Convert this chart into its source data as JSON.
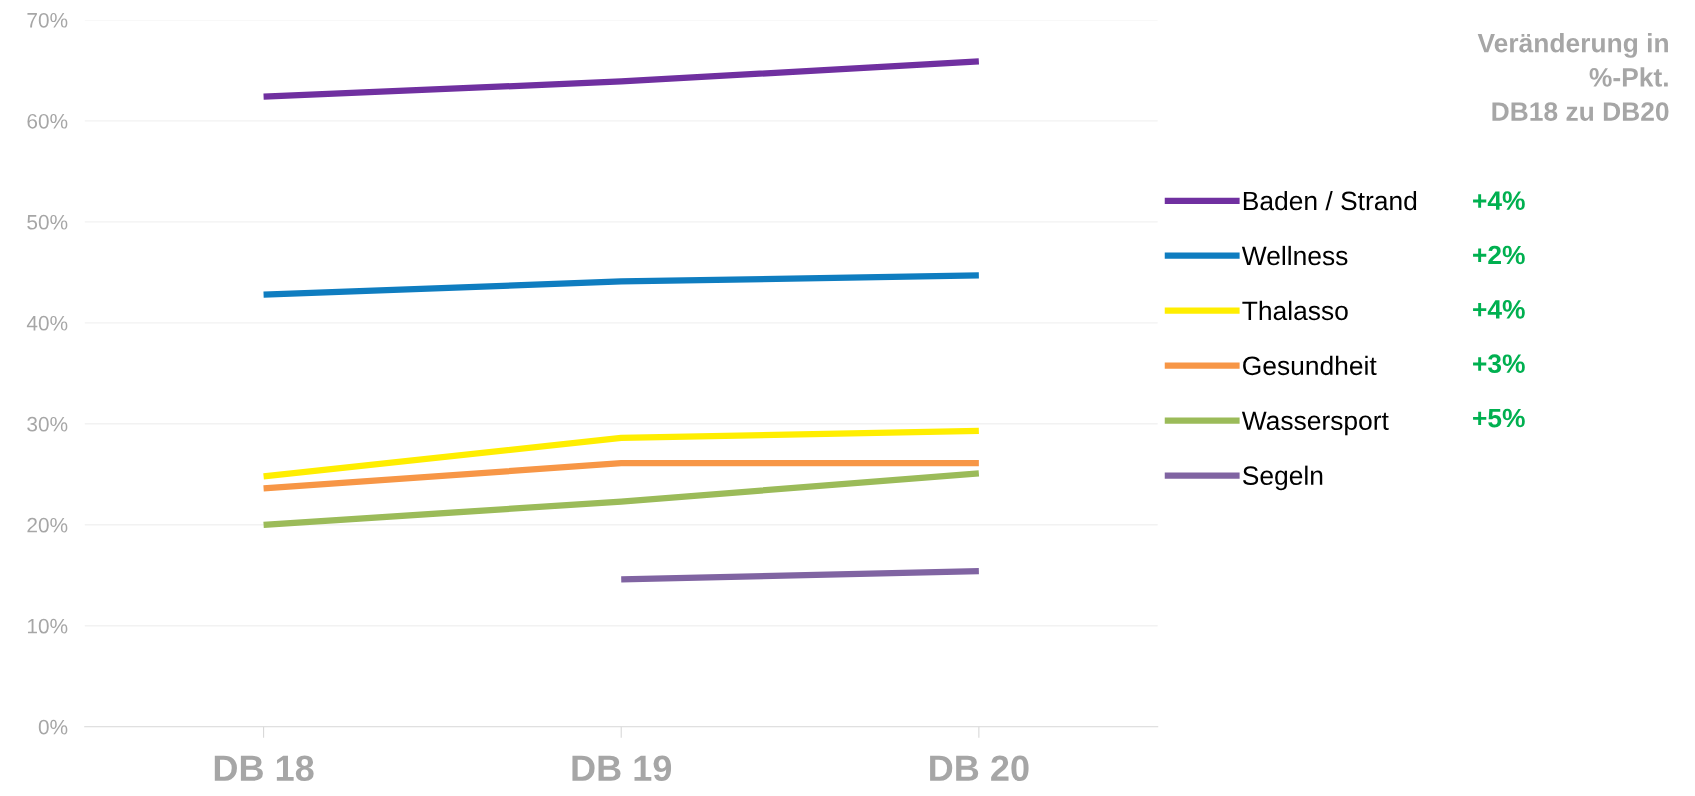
{
  "chart_data": {
    "type": "line",
    "categories": [
      "DB 18",
      "DB 19",
      "DB 20"
    ],
    "series": [
      {
        "name": "Baden / Strand",
        "color": "#7030a0",
        "values": [
          62.4,
          63.9,
          65.9
        ]
      },
      {
        "name": "Wellness",
        "color": "#0f7dc0",
        "values": [
          42.8,
          44.1,
          44.7
        ]
      },
      {
        "name": "Thalasso",
        "color": "#ffee00",
        "values": [
          24.8,
          28.6,
          29.3
        ]
      },
      {
        "name": "Gesundheit",
        "color": "#f79646",
        "values": [
          23.6,
          26.1,
          26.1
        ]
      },
      {
        "name": "Wassersport",
        "color": "#9bbb59",
        "values": [
          20.0,
          22.3,
          25.1
        ]
      },
      {
        "name": "Segeln",
        "color": "#8064a2",
        "values": [
          null,
          14.6,
          15.4
        ]
      }
    ],
    "ylim": [
      0,
      70
    ],
    "yticks": [
      {
        "value": 0,
        "label": "0%"
      },
      {
        "value": 10,
        "label": "10%"
      },
      {
        "value": 20,
        "label": "20%"
      },
      {
        "value": 30,
        "label": "30%"
      },
      {
        "value": 40,
        "label": "40%"
      },
      {
        "value": 50,
        "label": "50%"
      },
      {
        "value": 60,
        "label": "60%"
      },
      {
        "value": 70,
        "label": "70%"
      }
    ],
    "grid": "y",
    "legend": "right",
    "marker": "none",
    "line_style": "solid",
    "legend_title": "Veränderung in\n%-Pkt.\nDB18 zu DB20",
    "annotations": [
      "+4%",
      "+2%",
      "+4%",
      "+3%",
      "+5%"
    ]
  }
}
